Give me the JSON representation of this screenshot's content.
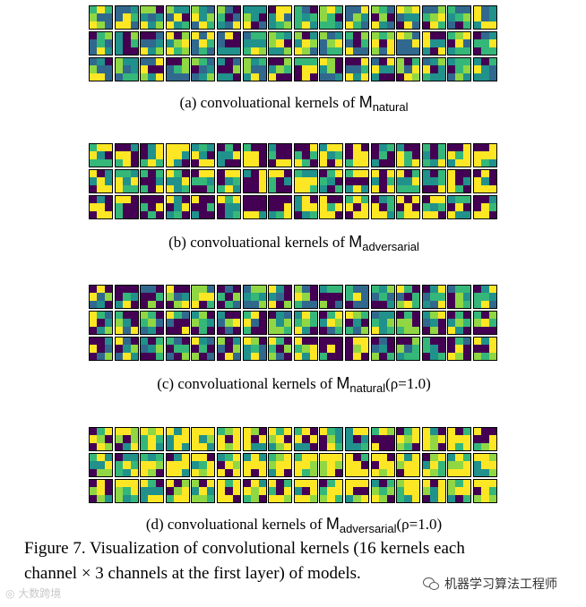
{
  "colors": {
    "purple": "#440154",
    "blue": "#31688e",
    "teal": "#21918c",
    "green": "#35b779",
    "lime": "#90d743",
    "yellow": "#fde725"
  },
  "panels": [
    {
      "label": "(a) convoluational kernels of ",
      "m": "M",
      "sub": "natural",
      "suffix": ""
    },
    {
      "label": "(b) convoluational kernels of ",
      "m": "M",
      "sub": "adversarial",
      "suffix": ""
    },
    {
      "label": "(c) convoluational kernels of ",
      "m": "M",
      "sub": "natural",
      "suffix": "(ρ=1.0)"
    },
    {
      "label": "(d) convoluational kernels of ",
      "m": "M",
      "sub": "adversarial",
      "suffix": "(ρ=1.0)"
    }
  ],
  "figure_caption": {
    "line1": "Figure 7. Visualization of convolutional kernels (16 kernels each",
    "line2": "channel × 3 channels at the first layer) of models."
  },
  "watermark_left": "◎ 大数跨境",
  "watermark_right": "机器学习算法工程师"
}
